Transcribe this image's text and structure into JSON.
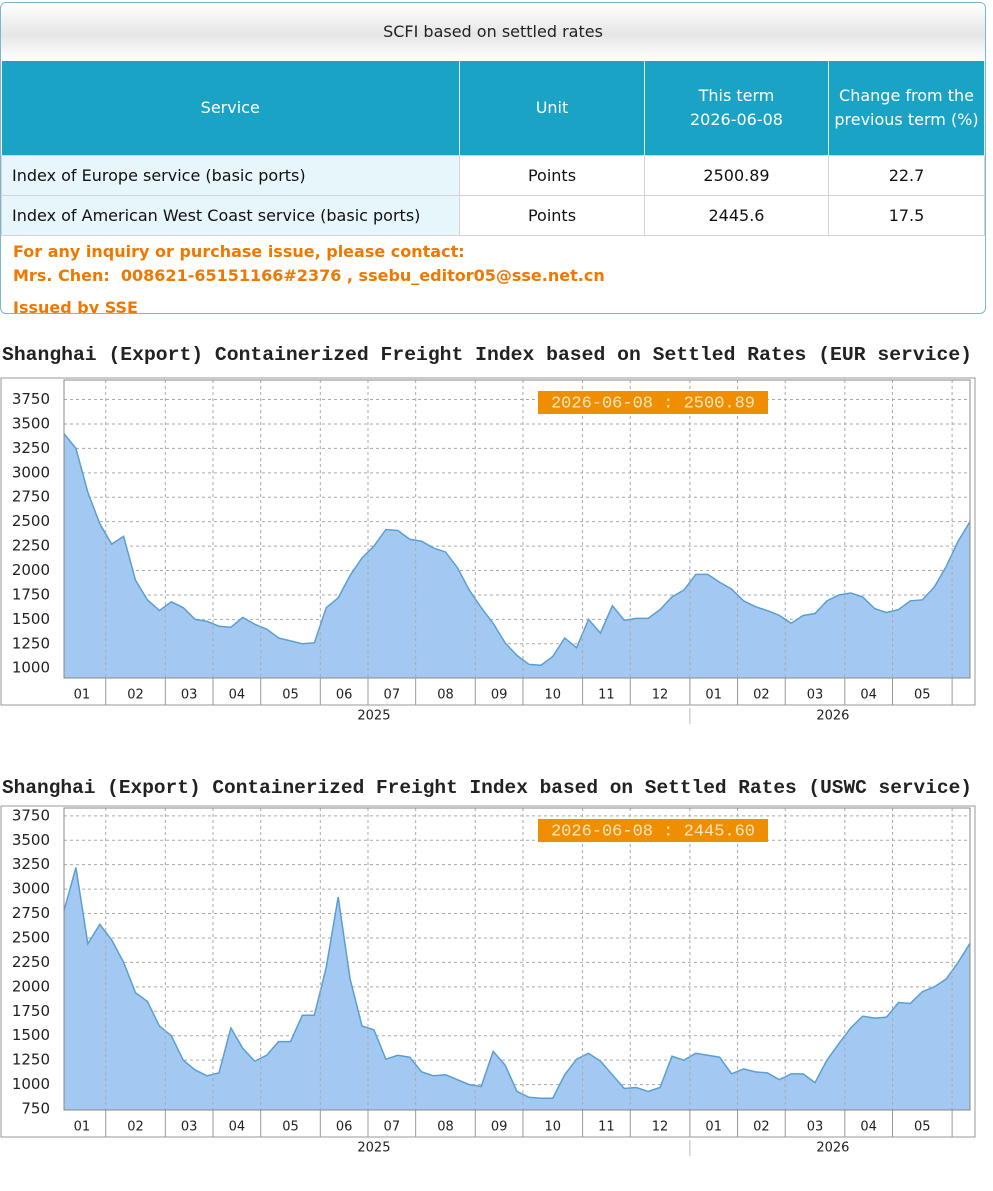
{
  "panel": {
    "title": "SCFI based on settled rates",
    "table": {
      "header": [
        "Service",
        "Unit",
        [
          "This term",
          "2026-06-08"
        ],
        "Change from the previous term (%)"
      ],
      "rows": [
        [
          "Index of Europe service (basic ports)",
          "Points",
          2500.89,
          22.7
        ],
        [
          "Index of American West Coast service (basic ports)",
          "Points",
          2445.6,
          17.5
        ]
      ]
    },
    "contact": [
      "For any inquiry or purchase issue, please contact:",
      "Mrs. Chen:  008621-65151166#2376 , ssebu_editor05@sse.net.cn",
      "Issued by SSE"
    ]
  },
  "chart_data": [
    {
      "type": "area",
      "title": "Shanghai (Export) Containerized Freight Index based on Settled Rates (EUR service)",
      "annotation": "2026-06-08 : 2500.89",
      "color": "#a3c9f2",
      "line_color": "#5a9fd0",
      "ylim": [
        900,
        3950
      ],
      "yticks": [
        1000,
        1250,
        1500,
        1750,
        2000,
        2250,
        2500,
        2750,
        3000,
        3250,
        3500,
        3750
      ],
      "grid": true,
      "groups": [
        {
          "label": "2025",
          "months": [
            {
              "label": "01",
              "values": [
                3400,
                3250,
                2800,
                2480
              ]
            },
            {
              "label": "02",
              "values": [
                2270,
                2350,
                1900,
                1700,
                1590
              ]
            },
            {
              "label": "03",
              "values": [
                1680,
                1620,
                1500,
                1480
              ]
            },
            {
              "label": "04",
              "values": [
                1430,
                1420,
                1520,
                1450
              ]
            },
            {
              "label": "05",
              "values": [
                1400,
                1310,
                1280,
                1250,
                1260
              ]
            },
            {
              "label": "06",
              "values": [
                1620,
                1720,
                1950,
                2130
              ]
            },
            {
              "label": "07",
              "values": [
                2250,
                2420,
                2410,
                2320
              ]
            },
            {
              "label": "08",
              "values": [
                2300,
                2230,
                2190,
                2030,
                1800
              ]
            },
            {
              "label": "09",
              "values": [
                1620,
                1460,
                1260,
                1130
              ]
            },
            {
              "label": "10",
              "values": [
                1040,
                1030,
                1120,
                1310,
                1210
              ]
            },
            {
              "label": "11",
              "values": [
                1500,
                1360,
                1640,
                1490
              ]
            },
            {
              "label": "12",
              "values": [
                1510,
                1510,
                1600,
                1730,
                1800
              ]
            }
          ]
        },
        {
          "label": "2026",
          "months": [
            {
              "label": "01",
              "values": [
                1960,
                1960,
                1880,
                1810
              ]
            },
            {
              "label": "02",
              "values": [
                1690,
                1630,
                1590,
                1540
              ]
            },
            {
              "label": "03",
              "values": [
                1460,
                1540,
                1560,
                1690,
                1750
              ]
            },
            {
              "label": "04",
              "values": [
                1770,
                1730,
                1610,
                1570
              ]
            },
            {
              "label": "05",
              "values": [
                1600,
                1690,
                1700,
                1830,
                2040
              ]
            },
            {
              "label": null,
              "values": [
                2300,
                2500.89
              ]
            }
          ]
        }
      ]
    },
    {
      "type": "area",
      "title": "Shanghai (Export) Containerized Freight Index based on Settled Rates (USWC service)",
      "annotation": "2026-06-08 : 2445.60",
      "color": "#a3c9f2",
      "line_color": "#5a9fd0",
      "ylim": [
        740,
        3830
      ],
      "yticks": [
        750,
        1000,
        1250,
        1500,
        1750,
        2000,
        2250,
        2500,
        2750,
        3000,
        3250,
        3500,
        3750
      ],
      "grid": true,
      "groups": [
        {
          "label": "2025",
          "months": [
            {
              "label": "01",
              "values": [
                2780,
                3220,
                2440,
                2640
              ]
            },
            {
              "label": "02",
              "values": [
                2480,
                2250,
                1940,
                1850,
                1600
              ]
            },
            {
              "label": "03",
              "values": [
                1500,
                1250,
                1150,
                1090
              ]
            },
            {
              "label": "04",
              "values": [
                1120,
                1580,
                1370,
                1240
              ]
            },
            {
              "label": "05",
              "values": [
                1300,
                1440,
                1440,
                1710,
                1710
              ]
            },
            {
              "label": "06",
              "values": [
                2200,
                2920,
                2080,
                1600
              ]
            },
            {
              "label": "07",
              "values": [
                1560,
                1260,
                1300,
                1280
              ]
            },
            {
              "label": "08",
              "values": [
                1130,
                1090,
                1100,
                1050,
                1000
              ]
            },
            {
              "label": "09",
              "values": [
                980,
                1340,
                1200,
                930
              ]
            },
            {
              "label": "10",
              "values": [
                870,
                860,
                860,
                1100,
                1260
              ]
            },
            {
              "label": "11",
              "values": [
                1320,
                1240,
                1100,
                960
              ]
            },
            {
              "label": "12",
              "values": [
                970,
                930,
                970,
                1290,
                1250
              ]
            }
          ]
        },
        {
          "label": "2026",
          "months": [
            {
              "label": "01",
              "values": [
                1320,
                1300,
                1280,
                1110
              ]
            },
            {
              "label": "02",
              "values": [
                1160,
                1130,
                1120,
                1050
              ]
            },
            {
              "label": "03",
              "values": [
                1110,
                1110,
                1020,
                1250,
                1420
              ]
            },
            {
              "label": "04",
              "values": [
                1580,
                1700,
                1680,
                1690
              ]
            },
            {
              "label": "05",
              "values": [
                1840,
                1830,
                1950,
                2000,
                2080
              ]
            },
            {
              "label": null,
              "values": [
                2250,
                2445.6
              ]
            }
          ]
        }
      ]
    }
  ]
}
